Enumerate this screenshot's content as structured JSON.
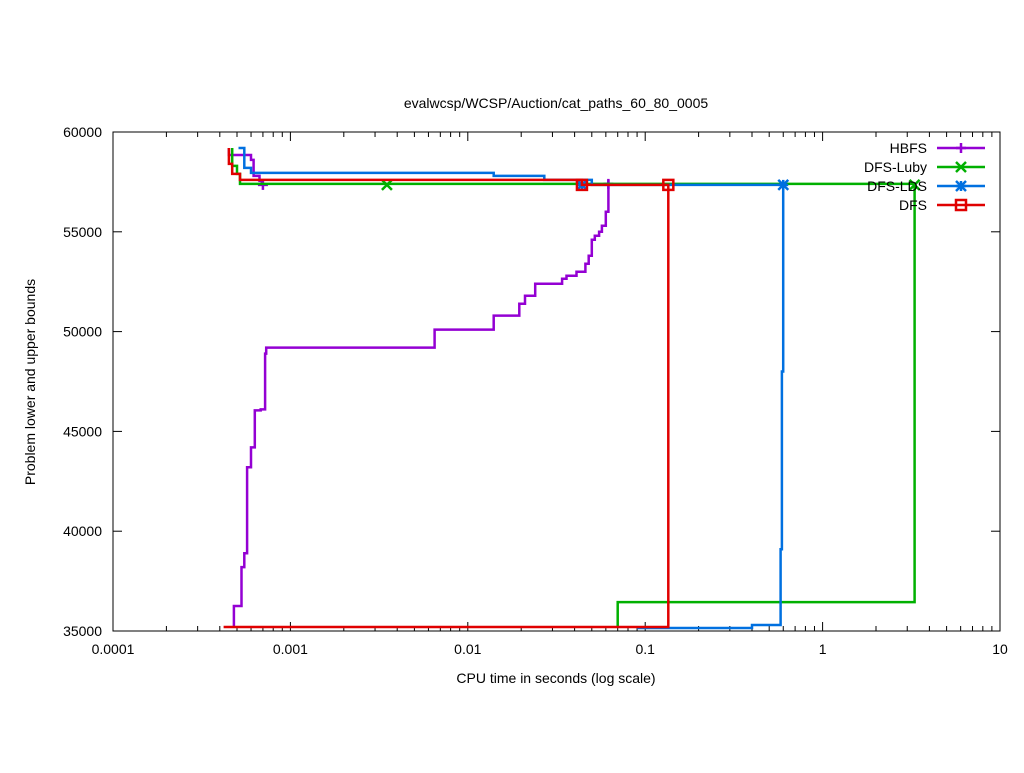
{
  "chart_data": {
    "type": "line",
    "title": "evalwcsp/WCSP/Auction/cat_paths_60_80_0005",
    "xlabel": "CPU time in seconds (log scale)",
    "ylabel": "Problem lower and upper bounds",
    "x_scale": "log",
    "xlim": [
      0.0001,
      10
    ],
    "ylim": [
      35000,
      60000
    ],
    "x_ticks": [
      {
        "value": 0.0001,
        "label": "0.0001"
      },
      {
        "value": 0.001,
        "label": "0.001"
      },
      {
        "value": 0.01,
        "label": "0.01"
      },
      {
        "value": 0.1,
        "label": "0.1"
      },
      {
        "value": 1,
        "label": "1"
      },
      {
        "value": 10,
        "label": "10"
      }
    ],
    "y_ticks": [
      {
        "value": 35000,
        "label": "35000"
      },
      {
        "value": 40000,
        "label": "40000"
      },
      {
        "value": 45000,
        "label": "45000"
      },
      {
        "value": 50000,
        "label": "50000"
      },
      {
        "value": 55000,
        "label": "55000"
      },
      {
        "value": 60000,
        "label": "60000"
      }
    ],
    "grid": false,
    "legend_position": "top-right",
    "series": [
      {
        "name": "HBFS",
        "color": "#9400d3",
        "marker": "plus",
        "lines": [
          [
            [
              0.00048,
              35150
            ],
            [
              0.00048,
              36250
            ],
            [
              0.00053,
              36250
            ],
            [
              0.00053,
              38200
            ],
            [
              0.00055,
              38200
            ],
            [
              0.00055,
              38900
            ],
            [
              0.00057,
              38900
            ],
            [
              0.00057,
              43200
            ],
            [
              0.0006,
              43200
            ],
            [
              0.0006,
              44200
            ],
            [
              0.00063,
              44200
            ],
            [
              0.00063,
              46050
            ],
            [
              0.00068,
              46050
            ],
            [
              0.00068,
              46100
            ],
            [
              0.00072,
              46100
            ],
            [
              0.00072,
              48900
            ],
            [
              0.00073,
              48900
            ],
            [
              0.00073,
              49200
            ],
            [
              0.0065,
              49200
            ],
            [
              0.0065,
              50100
            ],
            [
              0.014,
              50100
            ],
            [
              0.014,
              50800
            ],
            [
              0.0195,
              50800
            ],
            [
              0.0195,
              51400
            ],
            [
              0.021,
              51400
            ],
            [
              0.021,
              51800
            ],
            [
              0.024,
              51800
            ],
            [
              0.024,
              52400
            ],
            [
              0.034,
              52400
            ],
            [
              0.034,
              52650
            ],
            [
              0.036,
              52650
            ],
            [
              0.036,
              52800
            ],
            [
              0.041,
              52800
            ],
            [
              0.041,
              53000
            ],
            [
              0.046,
              53000
            ],
            [
              0.046,
              53400
            ],
            [
              0.048,
              53400
            ],
            [
              0.048,
              53800
            ],
            [
              0.05,
              53800
            ],
            [
              0.05,
              54600
            ],
            [
              0.052,
              54600
            ],
            [
              0.052,
              54800
            ],
            [
              0.055,
              54800
            ],
            [
              0.055,
              55000
            ],
            [
              0.057,
              55000
            ],
            [
              0.057,
              55300
            ],
            [
              0.06,
              55300
            ],
            [
              0.06,
              56000
            ],
            [
              0.062,
              56000
            ],
            [
              0.062,
              57600
            ]
          ],
          [
            [
              0.00045,
              59200
            ],
            [
              0.00045,
              58850
            ],
            [
              0.0006,
              58850
            ],
            [
              0.0006,
              58600
            ],
            [
              0.00062,
              58600
            ],
            [
              0.00062,
              57800
            ],
            [
              0.00067,
              57800
            ],
            [
              0.00067,
              57550
            ],
            [
              0.00069,
              57550
            ],
            [
              0.00069,
              57400
            ],
            [
              0.0007,
              57400
            ]
          ]
        ],
        "markers": [
          [
            0.0007,
            57350
          ],
          [
            0.062,
            57400
          ]
        ]
      },
      {
        "name": "DFS-Luby",
        "color": "#00b000",
        "marker": "cross",
        "lines": [
          [
            [
              0.00047,
              59200
            ],
            [
              0.00047,
              58300
            ],
            [
              0.0005,
              58300
            ],
            [
              0.0005,
              57900
            ],
            [
              0.00052,
              57900
            ],
            [
              0.00052,
              57400
            ],
            [
              3.3,
              57400
            ],
            [
              3.3,
              36450
            ],
            [
              0.07,
              36450
            ],
            [
              0.07,
              35150
            ]
          ]
        ],
        "markers": [
          [
            0.0035,
            57350
          ],
          [
            3.3,
            57350
          ]
        ]
      },
      {
        "name": "DFS-LDS",
        "color": "#0070e0",
        "marker": "star",
        "lines": [
          [
            [
              0.00051,
              59200
            ],
            [
              0.00055,
              59200
            ],
            [
              0.00055,
              58200
            ],
            [
              0.0006,
              58200
            ],
            [
              0.0006,
              57950
            ],
            [
              0.014,
              57950
            ],
            [
              0.014,
              57800
            ],
            [
              0.027,
              57800
            ],
            [
              0.027,
              57600
            ],
            [
              0.05,
              57600
            ],
            [
              0.05,
              57350
            ],
            [
              0.6,
              57350
            ],
            [
              0.6,
              48000
            ],
            [
              0.59,
              48000
            ],
            [
              0.59,
              39100
            ],
            [
              0.58,
              39100
            ],
            [
              0.58,
              35300
            ],
            [
              0.4,
              35300
            ],
            [
              0.4,
              35150
            ],
            [
              0.09,
              35150
            ]
          ]
        ],
        "markers": [
          [
            0.044,
            57350
          ],
          [
            0.6,
            57350
          ]
        ]
      },
      {
        "name": "DFS",
        "color": "#e00000",
        "marker": "square",
        "lines": [
          [
            [
              0.00045,
              59200
            ],
            [
              0.00045,
              58400
            ],
            [
              0.00047,
              58400
            ],
            [
              0.00047,
              57900
            ],
            [
              0.00052,
              57900
            ],
            [
              0.00052,
              57600
            ],
            [
              0.044,
              57600
            ],
            [
              0.044,
              57350
            ],
            [
              0.135,
              57350
            ],
            [
              0.135,
              35200
            ],
            [
              0.00042,
              35200
            ]
          ]
        ],
        "markers": [
          [
            0.044,
            57350
          ],
          [
            0.135,
            57350
          ]
        ]
      }
    ]
  }
}
